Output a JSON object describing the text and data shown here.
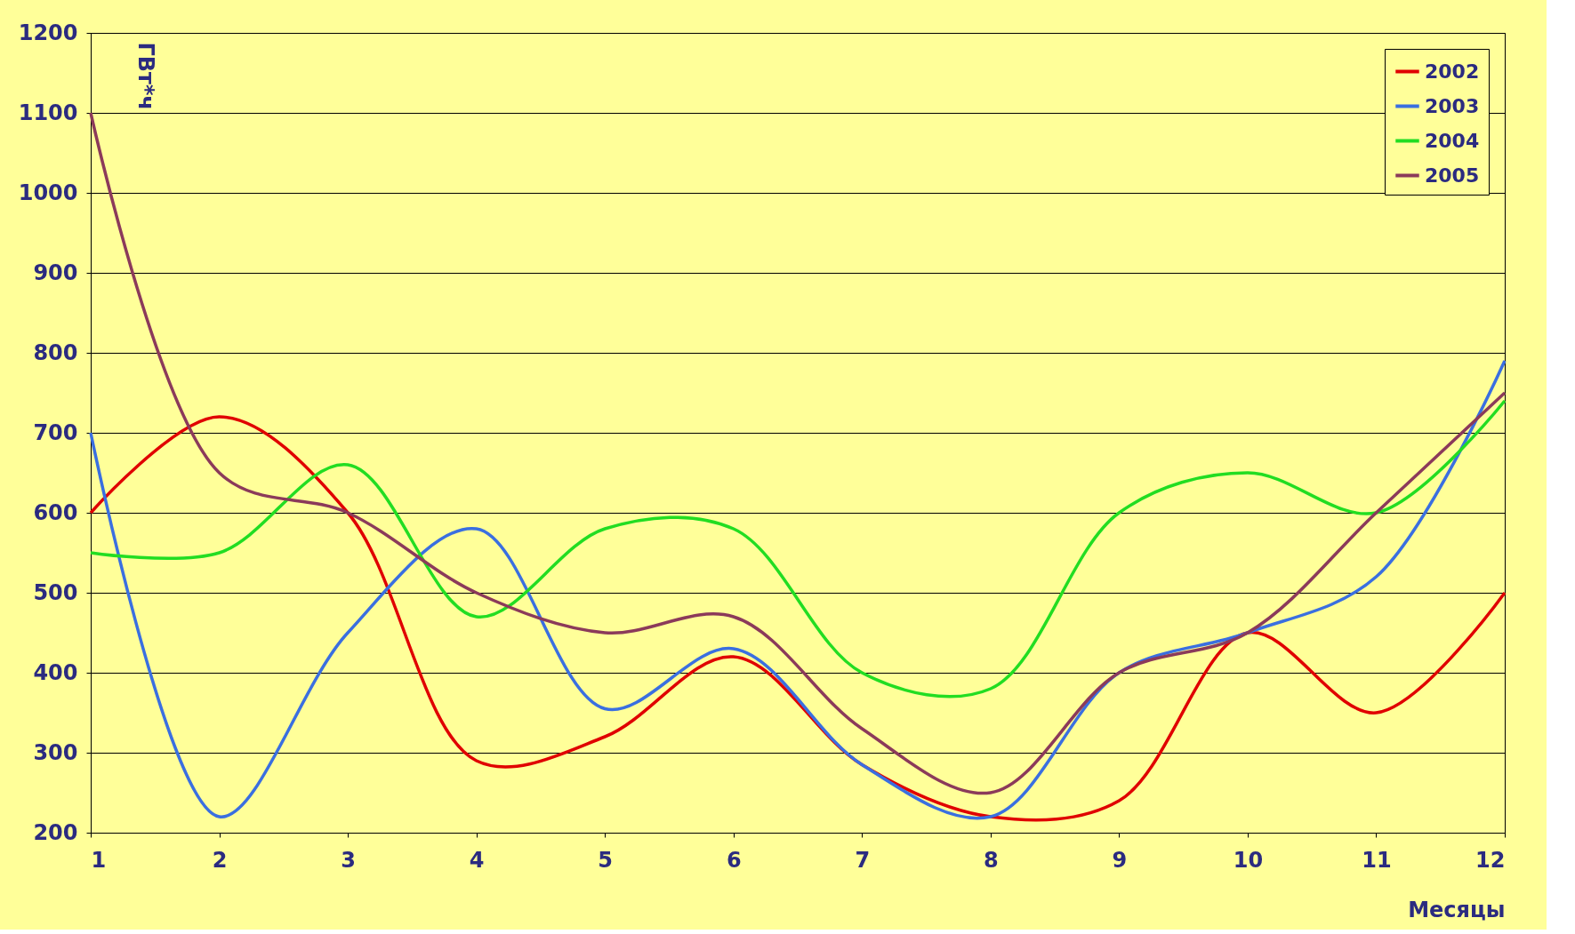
{
  "chart_data": {
    "type": "line",
    "xlabel": "Месяцы",
    "ylabel": "ГВт*ч",
    "x": [
      1,
      2,
      3,
      4,
      5,
      6,
      7,
      8,
      9,
      10,
      11,
      12
    ],
    "series": [
      {
        "name": "2002",
        "color": "#e00000",
        "values": [
          600,
          720,
          600,
          290,
          320,
          420,
          285,
          220,
          240,
          450,
          350,
          500
        ]
      },
      {
        "name": "2003",
        "color": "#3a6fe0",
        "values": [
          700,
          220,
          450,
          580,
          355,
          430,
          285,
          220,
          400,
          450,
          520,
          790
        ]
      },
      {
        "name": "2004",
        "color": "#22dd22",
        "values": [
          550,
          550,
          660,
          470,
          580,
          580,
          400,
          380,
          600,
          650,
          600,
          740
        ]
      },
      {
        "name": "2005",
        "color": "#8b3a5a",
        "values": [
          1100,
          650,
          600,
          500,
          450,
          470,
          330,
          250,
          400,
          450,
          600,
          750
        ]
      }
    ],
    "xlim": [
      1,
      12
    ],
    "xticks": [
      1,
      2,
      3,
      4,
      5,
      6,
      7,
      8,
      9,
      10,
      11,
      12
    ],
    "ylim": [
      200,
      1200
    ],
    "yticks": [
      200,
      300,
      400,
      500,
      600,
      700,
      800,
      900,
      1000,
      1100,
      1200
    ],
    "grid": "y",
    "legend": "top right",
    "line_style": "solid",
    "marker": "none"
  }
}
